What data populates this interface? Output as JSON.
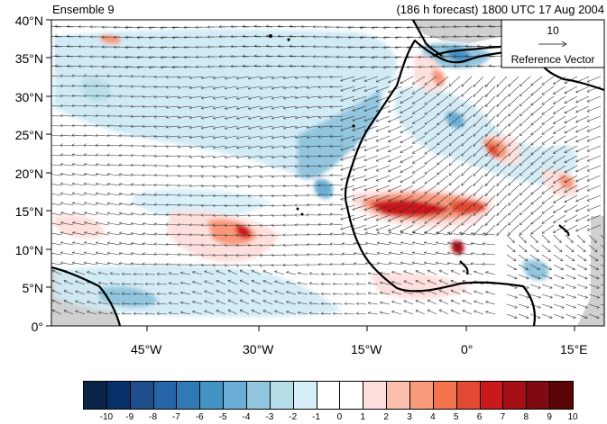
{
  "title_left": "Ensemble 9",
  "title_right": "(186 h forecast) 1800 UTC 17 Aug 2004",
  "reference_vector": {
    "magnitude": "10",
    "label": "Reference Vector"
  },
  "lat_ticks": [
    "40°N",
    "35°N",
    "30°N",
    "25°N",
    "20°N",
    "15°N",
    "10°N",
    "5°N",
    "0°"
  ],
  "lon_ticks": [
    "45°W",
    "30°W",
    "15°W",
    "0°",
    "15°E"
  ],
  "colorbar": {
    "labels": [
      "-10",
      "-9",
      "-8",
      "-7",
      "-6",
      "-5",
      "-4",
      "-3",
      "-2",
      "-1",
      "0",
      "1",
      "2",
      "3",
      "4",
      "5",
      "6",
      "7",
      "8",
      "9",
      "10"
    ],
    "colors": [
      "#0b2548",
      "#08306b",
      "#1f4e8c",
      "#2465a8",
      "#2f79b5",
      "#4393c3",
      "#6aadd5",
      "#92c5de",
      "#b4dde8",
      "#d6eff8",
      "#ffffff",
      "#ffffff",
      "#fde0dd",
      "#fbbfae",
      "#f8997a",
      "#f4744f",
      "#e34a33",
      "#cb181d",
      "#a50f15",
      "#7f0a10",
      "#5a0408"
    ]
  }
}
